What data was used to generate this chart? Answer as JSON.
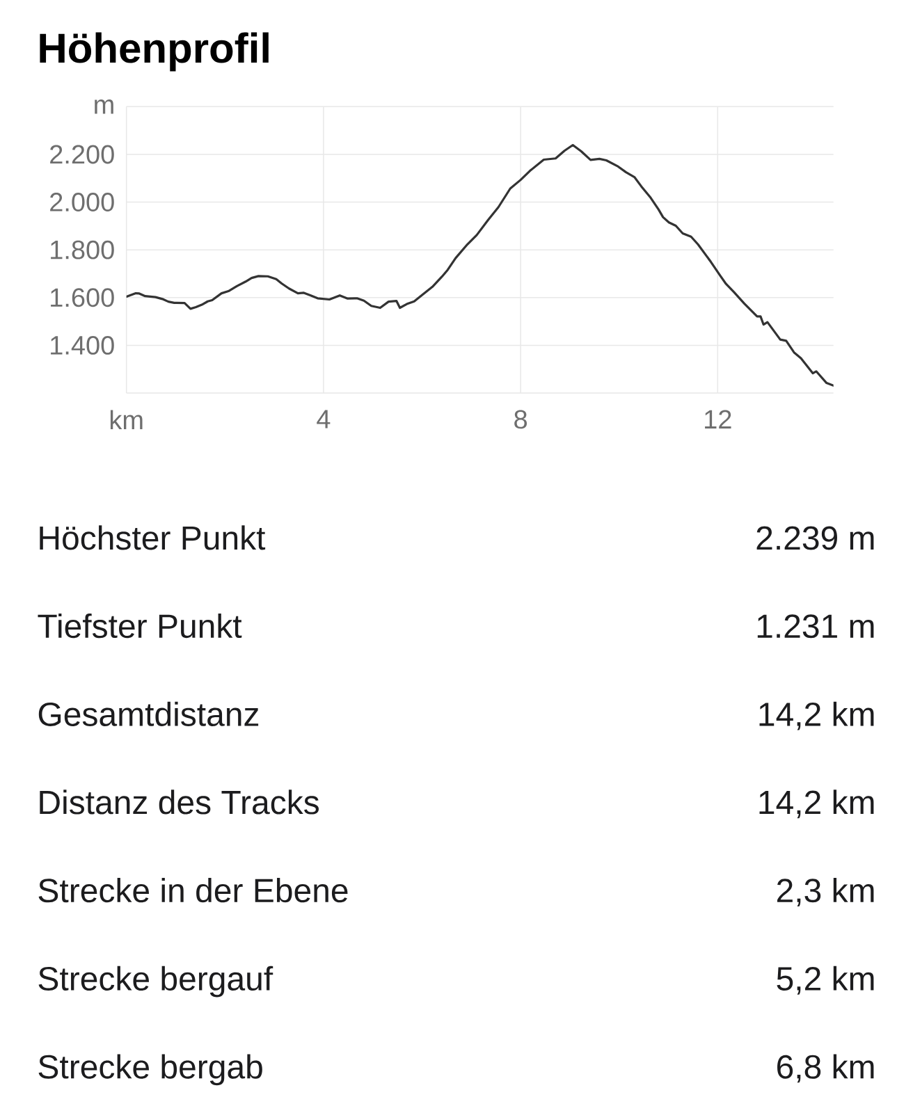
{
  "chart_data": {
    "type": "line",
    "title": "Höhenprofil",
    "xlabel": "km",
    "ylabel": "m",
    "x": [
      0,
      0.19,
      0.26,
      0.38,
      0.59,
      0.73,
      0.85,
      0.97,
      1.18,
      1.3,
      1.41,
      1.53,
      1.65,
      1.74,
      1.93,
      2.07,
      2.24,
      2.42,
      2.54,
      2.68,
      2.87,
      3.04,
      3.15,
      3.3,
      3.48,
      3.6,
      3.74,
      3.88,
      4.12,
      4.33,
      4.49,
      4.68,
      4.82,
      4.97,
      5.15,
      5.32,
      5.48,
      5.55,
      5.69,
      5.84,
      6.02,
      6.21,
      6.4,
      6.52,
      6.68,
      6.92,
      7.11,
      7.34,
      7.55,
      7.79,
      8.0,
      8.19,
      8.47,
      8.71,
      8.89,
      9.06,
      9.23,
      9.42,
      9.6,
      9.74,
      9.98,
      10.14,
      10.31,
      10.45,
      10.64,
      10.8,
      10.89,
      11.01,
      11.15,
      11.29,
      11.46,
      11.6,
      11.86,
      12.05,
      12.17,
      12.33,
      12.54,
      12.8,
      12.87,
      12.93,
      13.01,
      13.27,
      13.39,
      13.55,
      13.69,
      13.93,
      14.0,
      14.21,
      14.35
    ],
    "values": [
      1604,
      1618,
      1617,
      1606,
      1602,
      1594,
      1583,
      1578,
      1577,
      1553,
      1560,
      1570,
      1584,
      1589,
      1618,
      1627,
      1648,
      1667,
      1682,
      1690,
      1689,
      1677,
      1659,
      1638,
      1618,
      1620,
      1609,
      1597,
      1592,
      1609,
      1596,
      1597,
      1587,
      1565,
      1557,
      1583,
      1586,
      1557,
      1573,
      1584,
      1614,
      1645,
      1687,
      1716,
      1765,
      1823,
      1862,
      1925,
      1979,
      2057,
      2093,
      2131,
      2178,
      2183,
      2215,
      2239,
      2213,
      2177,
      2181,
      2175,
      2149,
      2125,
      2105,
      2066,
      2018,
      1969,
      1937,
      1915,
      1901,
      1869,
      1855,
      1823,
      1750,
      1692,
      1657,
      1623,
      1575,
      1521,
      1521,
      1487,
      1497,
      1424,
      1419,
      1370,
      1346,
      1283,
      1291,
      1242,
      1231
    ],
    "color": "#333333",
    "xlim": [
      0,
      14.35
    ],
    "ylim": [
      1200,
      2400
    ],
    "xticks": [
      {
        "value": 0,
        "label": null
      },
      4,
      8,
      12
    ],
    "yticks": [
      {
        "value": 1200,
        "label": null
      },
      {
        "value": 1400,
        "label": "1.400"
      },
      {
        "value": 1600,
        "label": "1.600"
      },
      {
        "value": 1800,
        "label": "1.800"
      },
      {
        "value": 2000,
        "label": "2.000"
      },
      {
        "value": 2200,
        "label": "2.200"
      },
      {
        "value": 2400,
        "label": null
      }
    ],
    "grid": true,
    "annotations": [
      "Höchster Punkt",
      "2.239 m",
      "Tiefster Punkt",
      "1.231 m",
      "Gesamtdistanz",
      "14,2 km",
      "Distanz des Tracks",
      "14,2 km",
      "Strecke in der Ebene",
      "2,3 km",
      "Strecke bergauf",
      "5,2 km",
      "Strecke bergab",
      "6,8 km"
    ]
  }
}
